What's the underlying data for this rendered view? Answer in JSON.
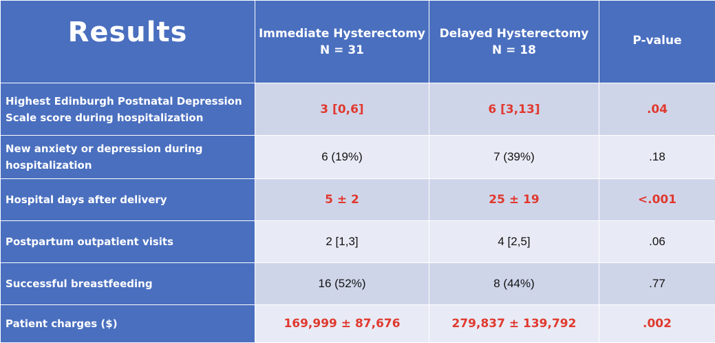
{
  "header": {
    "title": "Results",
    "col1_line1": "Immediate Hysterectomy",
    "col1_line2": "N = 31",
    "col2_line1": "Delayed Hysterectomy",
    "col2_line2": "N = 18",
    "col3": "P-value"
  },
  "rows": [
    {
      "label": "Highest Edinburgh Postnatal Depression Scale score during hospitalization",
      "immediate": "3 [0,6]",
      "delayed": "6 [3,13]",
      "p": ".04",
      "significant": true
    },
    {
      "label": "New anxiety or depression during hospitalization",
      "immediate": "6 (19%)",
      "delayed": "7 (39%)",
      "p": ".18",
      "significant": false
    },
    {
      "label": "Hospital days after delivery",
      "immediate": "5 ± 2",
      "delayed": "25 ± 19",
      "p": "<.001",
      "significant": true
    },
    {
      "label": "Postpartum outpatient visits",
      "immediate": "2 [1,3]",
      "delayed": "4 [2,5]",
      "p": ".06",
      "significant": false
    },
    {
      "label": "Successful breastfeeding",
      "immediate": "16 (52%)",
      "delayed": "8 (44%)",
      "p": ".77",
      "significant": false
    },
    {
      "label": "Patient charges ($)",
      "immediate": "169,999 ± 87,676",
      "delayed": "279,837 ± 139,792",
      "p": ".002",
      "significant": true
    }
  ],
  "colors": {
    "header_bg": "#4a6fbf",
    "row_odd_bg": "#cfd5e9",
    "row_even_bg": "#e8ebf5",
    "significant_text": "#e0392f"
  }
}
